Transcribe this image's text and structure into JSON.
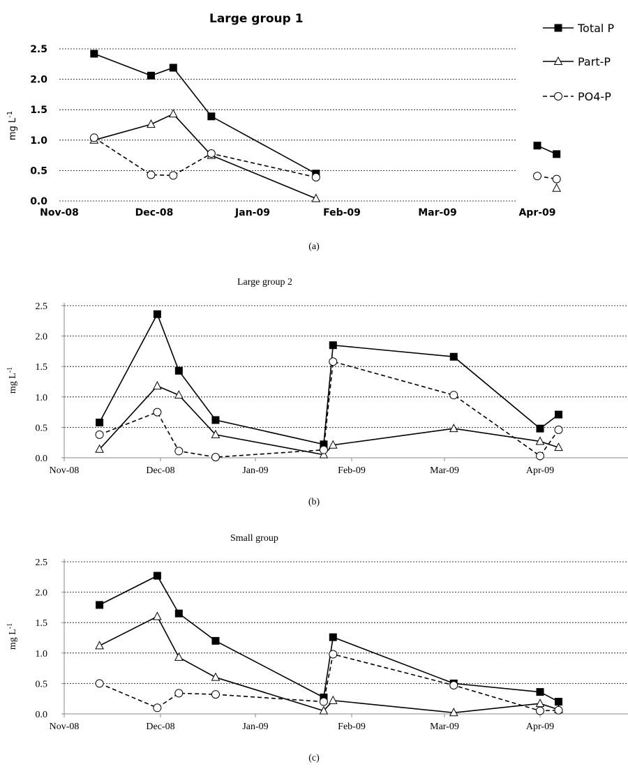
{
  "legend": {
    "total_p": "Total P",
    "part_p": "Part-P",
    "po4_p": "PO4-P"
  },
  "chart_data": [
    {
      "type": "line",
      "title": "Large group 1",
      "caption": "(a)",
      "ylabel": "mg L",
      "ylabel_sup": "-1",
      "ylim": [
        0,
        2.5
      ],
      "yticks": [
        "0.0",
        "0.5",
        "1.0",
        "1.5",
        "2.0",
        "2.5"
      ],
      "xticks": [
        "Nov-08",
        "Dec-08",
        "Jan-09",
        "Feb-09",
        "Mar-09",
        "Apr-09"
      ],
      "grid": "horizontal",
      "series": [
        {
          "key": "total_p",
          "name": "Total P",
          "segments": [
            [
              [
                "2008-11-12",
                2.42
              ],
              [
                "2008-11-30",
                2.06
              ],
              [
                "2008-12-07",
                2.19
              ],
              [
                "2008-12-19",
                1.39
              ],
              [
                "2009-01-23",
                0.45
              ]
            ],
            [
              [
                "2009-04-01",
                0.91
              ],
              [
                "2009-04-07",
                0.77
              ]
            ]
          ]
        },
        {
          "key": "part_p",
          "name": "Part-P",
          "segments": [
            [
              [
                "2008-11-12",
                1.0
              ],
              [
                "2008-11-30",
                1.26
              ],
              [
                "2008-12-07",
                1.43
              ],
              [
                "2008-12-19",
                0.75
              ],
              [
                "2009-01-23",
                0.04
              ]
            ],
            [
              [
                "2009-04-07",
                0.21
              ]
            ]
          ]
        },
        {
          "key": "po4_p",
          "name": "PO4-P",
          "segments": [
            [
              [
                "2008-11-12",
                1.04
              ],
              [
                "2008-11-30",
                0.43
              ],
              [
                "2008-12-07",
                0.42
              ],
              [
                "2008-12-19",
                0.78
              ],
              [
                "2009-01-23",
                0.39
              ]
            ],
            [
              [
                "2009-04-01",
                0.41
              ],
              [
                "2009-04-07",
                0.36
              ]
            ]
          ]
        }
      ]
    },
    {
      "type": "line",
      "title": "Large group 2",
      "caption": "(b)",
      "ylabel": "mg L",
      "ylabel_sup": "-1",
      "ylim": [
        0,
        2.5
      ],
      "yticks": [
        "0.0",
        "0.5",
        "1.0",
        "1.5",
        "2.0",
        "2.5"
      ],
      "xticks": [
        "Nov-08",
        "Dec-08",
        "Jan-09",
        "Feb-09",
        "Mar-09",
        "Apr-09"
      ],
      "grid": "horizontal",
      "series": [
        {
          "key": "total_p",
          "name": "Total P",
          "segments": [
            [
              [
                "2008-11-12",
                0.58
              ],
              [
                "2008-11-30",
                2.36
              ],
              [
                "2008-12-07",
                1.43
              ],
              [
                "2008-12-19",
                0.62
              ],
              [
                "2009-01-23",
                0.22
              ],
              [
                "2009-01-26",
                1.85
              ],
              [
                "2009-03-04",
                1.66
              ],
              [
                "2009-04-01",
                0.48
              ],
              [
                "2009-04-07",
                0.71
              ]
            ]
          ]
        },
        {
          "key": "part_p",
          "name": "Part-P",
          "segments": [
            [
              [
                "2008-11-12",
                0.14
              ],
              [
                "2008-11-30",
                1.18
              ],
              [
                "2008-12-07",
                1.03
              ],
              [
                "2008-12-19",
                0.38
              ],
              [
                "2009-01-23",
                0.05
              ],
              [
                "2009-01-26",
                0.21
              ],
              [
                "2009-03-04",
                0.48
              ],
              [
                "2009-04-01",
                0.27
              ],
              [
                "2009-04-07",
                0.17
              ]
            ]
          ]
        },
        {
          "key": "po4_p",
          "name": "PO4-P",
          "segments": [
            [
              [
                "2008-11-12",
                0.38
              ],
              [
                "2008-11-30",
                0.75
              ],
              [
                "2008-12-07",
                0.11
              ],
              [
                "2008-12-19",
                0.01
              ],
              [
                "2009-01-23",
                0.13
              ],
              [
                "2009-01-26",
                1.58
              ],
              [
                "2009-03-04",
                1.03
              ],
              [
                "2009-04-01",
                0.03
              ],
              [
                "2009-04-07",
                0.46
              ]
            ]
          ]
        }
      ]
    },
    {
      "type": "line",
      "title": "Small group",
      "caption": "(c)",
      "ylabel": "mg L",
      "ylabel_sup": "-1",
      "ylim": [
        0,
        2.5
      ],
      "yticks": [
        "0.0",
        "0.5",
        "1.0",
        "1.5",
        "2.0",
        "2.5"
      ],
      "xticks": [
        "Nov-08",
        "Dec-08",
        "Jan-09",
        "Feb-09",
        "Mar-09",
        "Apr-09"
      ],
      "grid": "horizontal",
      "series": [
        {
          "key": "total_p",
          "name": "Total P",
          "segments": [
            [
              [
                "2008-11-12",
                1.79
              ],
              [
                "2008-11-30",
                2.27
              ],
              [
                "2008-12-07",
                1.65
              ],
              [
                "2008-12-19",
                1.2
              ],
              [
                "2009-01-23",
                0.27
              ],
              [
                "2009-01-26",
                1.26
              ],
              [
                "2009-03-04",
                0.5
              ],
              [
                "2009-04-01",
                0.36
              ],
              [
                "2009-04-07",
                0.2
              ]
            ]
          ]
        },
        {
          "key": "part_p",
          "name": "Part-P",
          "segments": [
            [
              [
                "2008-11-12",
                1.12
              ],
              [
                "2008-11-30",
                1.6
              ],
              [
                "2008-12-07",
                0.93
              ],
              [
                "2008-12-19",
                0.6
              ],
              [
                "2009-01-23",
                0.05
              ],
              [
                "2009-01-26",
                0.22
              ],
              [
                "2009-03-04",
                0.02
              ],
              [
                "2009-04-01",
                0.17
              ],
              [
                "2009-04-07",
                0.07
              ]
            ]
          ]
        },
        {
          "key": "po4_p",
          "name": "PO4-P",
          "segments": [
            [
              [
                "2008-11-12",
                0.5
              ],
              [
                "2008-11-30",
                0.1
              ],
              [
                "2008-12-07",
                0.34
              ],
              [
                "2008-12-19",
                0.32
              ],
              [
                "2009-01-23",
                0.2
              ],
              [
                "2009-01-26",
                0.98
              ],
              [
                "2009-03-04",
                0.47
              ],
              [
                "2009-04-01",
                0.05
              ],
              [
                "2009-04-07",
                0.06
              ]
            ]
          ]
        }
      ]
    }
  ]
}
